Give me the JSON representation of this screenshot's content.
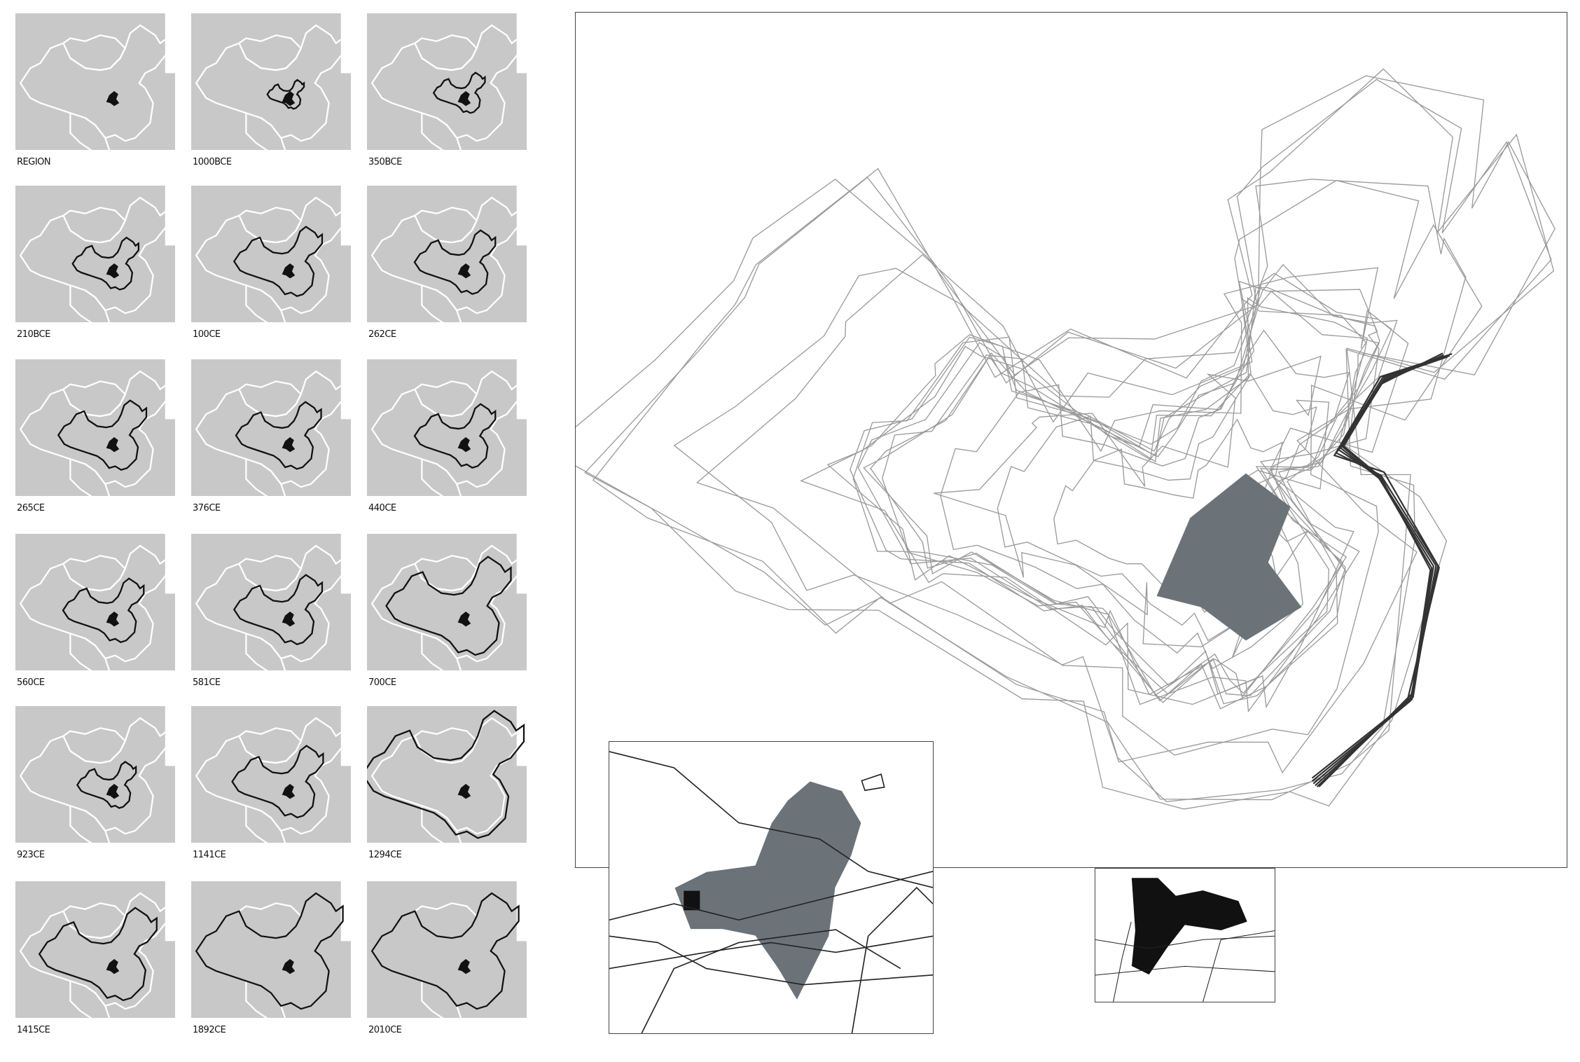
{
  "thumbnails": [
    {
      "label": "REGION",
      "extent": 0
    },
    {
      "label": "1000BCE",
      "extent": 0.25
    },
    {
      "label": "350BCE",
      "extent": 0.35
    },
    {
      "label": "210BCE",
      "extent": 0.45
    },
    {
      "label": "100CE",
      "extent": 0.6
    },
    {
      "label": "262CE",
      "extent": 0.55
    },
    {
      "label": "265CE",
      "extent": 0.6
    },
    {
      "label": "376CE",
      "extent": 0.58
    },
    {
      "label": "440CE",
      "extent": 0.55
    },
    {
      "label": "560CE",
      "extent": 0.55
    },
    {
      "label": "581CE",
      "extent": 0.6
    },
    {
      "label": "700CE",
      "extent": 0.85
    },
    {
      "label": "923CE",
      "extent": 0.4
    },
    {
      "label": "1141CE",
      "extent": 0.62
    },
    {
      "label": "1294CE",
      "extent": 1.1
    },
    {
      "label": "1415CE",
      "extent": 0.8
    },
    {
      "label": "1892CE",
      "extent": 1.0
    },
    {
      "label": "2010CE",
      "extent": 1.0
    }
  ],
  "colors": {
    "land": "#c8c8c8",
    "border": "#ffffff",
    "outline": "#111111",
    "region": "#111111",
    "inset_region": "#6b7379",
    "overlay_lines": "#9a9a9a"
  }
}
